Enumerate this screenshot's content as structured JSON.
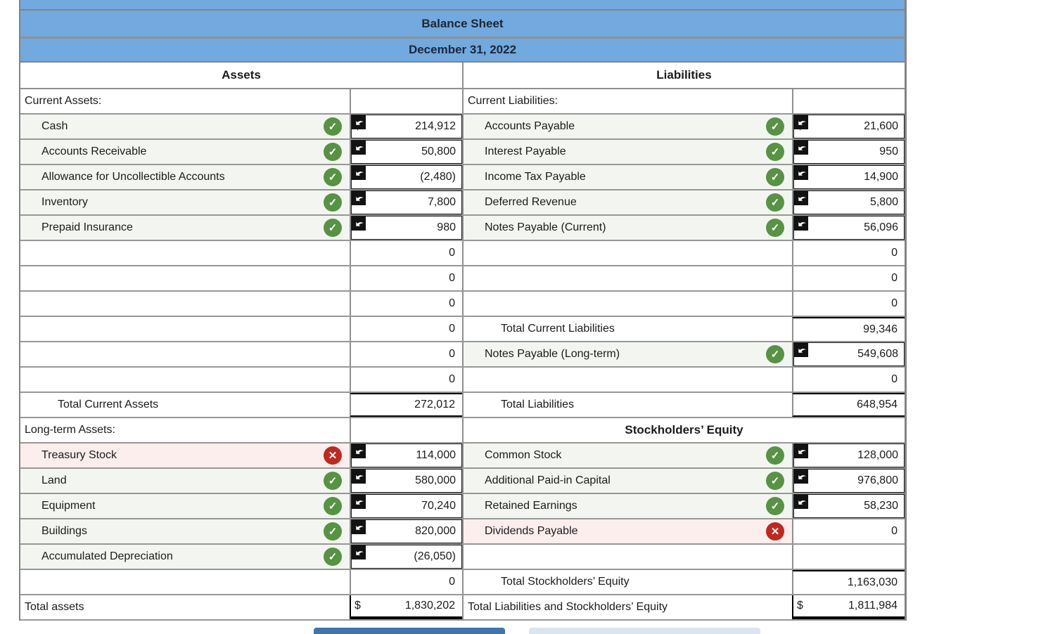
{
  "header": {
    "title": "Balance Sheet",
    "date": "December 31, 2022"
  },
  "columns": {
    "assets": "Assets",
    "liabilities": "Liabilities"
  },
  "colors": {
    "header_blue": "#72a9df",
    "correct_green": "#569343",
    "error_red": "#c1281d",
    "correct_row_bg": "#f3f6f0",
    "error_row_bg": "#fdeeee",
    "primary_button_blue": "#3b76b0",
    "secondary_button_blue": "#dbe5f1"
  },
  "left_rows": [
    {
      "type": "section",
      "label": "Current Assets:",
      "value": "",
      "kind": "empty"
    },
    {
      "type": "item",
      "label": "Cash",
      "icon": "check",
      "bg": "ok",
      "value": "214,912",
      "kind": "input",
      "dollar": true
    },
    {
      "type": "item",
      "label": "Accounts Receivable",
      "icon": "check",
      "bg": "ok",
      "value": "50,800",
      "kind": "input"
    },
    {
      "type": "item",
      "label": "Allowance for Uncollectible Accounts",
      "icon": "check",
      "bg": "ok",
      "value": "(2,480)",
      "kind": "input"
    },
    {
      "type": "item",
      "label": "Inventory",
      "icon": "check",
      "bg": "ok",
      "value": "7,800",
      "kind": "input"
    },
    {
      "type": "item",
      "label": "Prepaid Insurance",
      "icon": "check",
      "bg": "ok",
      "value": "980",
      "kind": "input"
    },
    {
      "type": "blank",
      "label": "",
      "value": "0",
      "kind": "plain"
    },
    {
      "type": "blank",
      "label": "",
      "value": "0",
      "kind": "plain"
    },
    {
      "type": "blank",
      "label": "",
      "value": "0",
      "kind": "plain"
    },
    {
      "type": "blank",
      "label": "",
      "value": "0",
      "kind": "plain"
    },
    {
      "type": "blank",
      "label": "",
      "value": "0",
      "kind": "plain"
    },
    {
      "type": "blank",
      "label": "",
      "value": "0",
      "kind": "plain"
    },
    {
      "type": "subtotal",
      "label": "Total Current Assets",
      "value": "272,012",
      "kind": "plain",
      "border_top": true,
      "border_bottom": true
    },
    {
      "type": "section",
      "label": "Long-term Assets:",
      "value": "",
      "kind": "empty"
    },
    {
      "type": "item",
      "label": "Treasury Stock",
      "icon": "x",
      "bg": "err",
      "value": "114,000",
      "kind": "input"
    },
    {
      "type": "item",
      "label": "Land",
      "icon": "check",
      "bg": "ok",
      "value": "580,000",
      "kind": "input"
    },
    {
      "type": "item",
      "label": "Equipment",
      "icon": "check",
      "bg": "ok",
      "value": "70,240",
      "kind": "input"
    },
    {
      "type": "item",
      "label": "Buildings",
      "icon": "check",
      "bg": "ok",
      "value": "820,000",
      "kind": "input"
    },
    {
      "type": "item",
      "label": "Accumulated Depreciation",
      "icon": "check",
      "bg": "ok",
      "value": "(26,050)",
      "kind": "input"
    },
    {
      "type": "blank",
      "label": "",
      "value": "0",
      "kind": "plain"
    },
    {
      "type": "total",
      "label": "Total assets",
      "value": "1,830,202",
      "kind": "plain",
      "dollar": true,
      "border_bottom_thick": true
    }
  ],
  "right_rows": [
    {
      "type": "section",
      "label": "Current Liabilities:",
      "value": "",
      "kind": "empty"
    },
    {
      "type": "item",
      "label": "Accounts Payable",
      "icon": "check",
      "bg": "ok",
      "value": "21,600",
      "kind": "input",
      "dollar": true
    },
    {
      "type": "item",
      "label": "Interest Payable",
      "icon": "check",
      "bg": "ok",
      "value": "950",
      "kind": "input"
    },
    {
      "type": "item",
      "label": "Income Tax Payable",
      "icon": "check",
      "bg": "ok",
      "value": "14,900",
      "kind": "input"
    },
    {
      "type": "item",
      "label": "Deferred Revenue",
      "icon": "check",
      "bg": "ok",
      "value": "5,800",
      "kind": "input"
    },
    {
      "type": "item",
      "label": "Notes Payable (Current)",
      "icon": "check",
      "bg": "ok",
      "value": "56,096",
      "kind": "input"
    },
    {
      "type": "blank",
      "label": "",
      "value": "0",
      "kind": "plain"
    },
    {
      "type": "blank",
      "label": "",
      "value": "0",
      "kind": "plain"
    },
    {
      "type": "blank",
      "label": "",
      "value": "0",
      "kind": "plain"
    },
    {
      "type": "subtotal",
      "label": "Total Current Liabilities",
      "value": "99,346",
      "kind": "plain",
      "border_top": true
    },
    {
      "type": "item",
      "label": "Notes Payable (Long-term)",
      "icon": "check",
      "bg": "ok",
      "value": "549,608",
      "kind": "input"
    },
    {
      "type": "blank",
      "label": "",
      "value": "0",
      "kind": "plain"
    },
    {
      "type": "subtotal",
      "label": "Total Liabilities",
      "value": "648,954",
      "kind": "plain",
      "border_top": true,
      "border_bottom": true
    },
    {
      "type": "span_header",
      "label": "Stockholders’ Equity"
    },
    {
      "type": "item",
      "label": "Common Stock",
      "icon": "check",
      "bg": "ok",
      "value": "128,000",
      "kind": "input"
    },
    {
      "type": "item",
      "label": "Additional Paid-in Capital",
      "icon": "check",
      "bg": "ok",
      "value": "976,800",
      "kind": "input"
    },
    {
      "type": "item",
      "label": "Retained Earnings",
      "icon": "check",
      "bg": "ok",
      "value": "58,230",
      "kind": "input"
    },
    {
      "type": "item",
      "label": "Dividends Payable",
      "icon": "x",
      "bg": "err",
      "value": "0",
      "kind": "plain"
    },
    {
      "type": "blank",
      "label": "",
      "value": "",
      "kind": "empty"
    },
    {
      "type": "subtotal",
      "label": "Total Stockholders’ Equity",
      "value": "1,163,030",
      "kind": "plain",
      "border_top": true
    },
    {
      "type": "total",
      "label": "Total Liabilities and Stockholders’ Equity",
      "value": "1,811,984",
      "kind": "plain",
      "dollar": true,
      "border_bottom_thick": true
    }
  ],
  "footer": {
    "primary_button_label": "",
    "secondary_button_label": ""
  }
}
